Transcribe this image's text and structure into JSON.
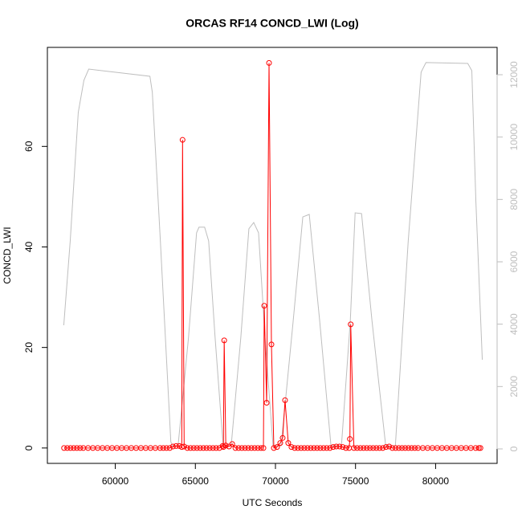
{
  "chart_data": {
    "type": "line",
    "title": "ORCAS RF14 CONCD_LWI (Log)",
    "x_label": "UTC Seconds",
    "y_label": "CONCD_LWI",
    "xlim": [
      55760,
      83840
    ],
    "xticks": [
      60000,
      65000,
      70000,
      75000,
      80000
    ],
    "ylim": [
      -3.06,
      79.7
    ],
    "yticks": [
      0,
      20,
      40,
      60
    ],
    "y2lim": [
      -464,
      12876
    ],
    "y2ticks": [
      0,
      2000,
      4000,
      6000,
      8000,
      10000,
      12000
    ],
    "series": [
      {
        "name": "CONCD_LWI",
        "color": "#ff0000",
        "markers": true,
        "x": [
          56800,
          57000,
          57200,
          57400,
          57600,
          57800,
          58000,
          58300,
          58600,
          58900,
          59200,
          59500,
          59800,
          60100,
          60400,
          60700,
          61000,
          61300,
          61600,
          61900,
          62200,
          62500,
          62800,
          63000,
          63200,
          63400,
          63600,
          63800,
          64000,
          64150,
          64200,
          64300,
          64500,
          64700,
          64900,
          65100,
          65300,
          65500,
          65700,
          65900,
          66100,
          66300,
          66500,
          66700,
          66750,
          66800,
          66900,
          67100,
          67300,
          67500,
          67700,
          67900,
          68100,
          68300,
          68500,
          68700,
          68900,
          69100,
          69250,
          69300,
          69450,
          69600,
          69750,
          69900,
          70100,
          70300,
          70450,
          70600,
          70800,
          71000,
          71200,
          71400,
          71600,
          71800,
          72000,
          72200,
          72400,
          72600,
          72800,
          73000,
          73200,
          73400,
          73600,
          73800,
          74000,
          74200,
          74400,
          74600,
          74650,
          74700,
          74900,
          75100,
          75300,
          75500,
          75700,
          75900,
          76100,
          76300,
          76500,
          76700,
          76900,
          77100,
          77300,
          77500,
          77700,
          77900,
          78100,
          78300,
          78500,
          78700,
          78900,
          79200,
          79500,
          79800,
          80100,
          80400,
          80700,
          81000,
          81300,
          81600,
          81900,
          82200,
          82500,
          82700,
          82800
        ],
        "values": [
          0,
          0,
          0,
          0,
          0,
          0,
          0,
          0,
          0,
          0,
          0,
          0,
          0,
          0,
          0,
          0,
          0,
          0,
          0,
          0,
          0,
          0,
          0,
          0,
          0,
          0,
          0.3,
          0.4,
          0.4,
          0.2,
          61.3,
          0.3,
          0,
          0,
          0,
          0,
          0,
          0,
          0,
          0,
          0,
          0,
          0,
          0.4,
          0.2,
          21.4,
          0.5,
          0.3,
          0.8,
          0,
          0,
          0,
          0,
          0,
          0,
          0,
          0,
          0,
          0,
          28.3,
          9,
          76.6,
          20.6,
          0,
          0.2,
          1,
          2,
          9.5,
          1,
          0.2,
          0,
          0,
          0,
          0,
          0,
          0,
          0,
          0,
          0,
          0,
          0,
          0,
          0.2,
          0.3,
          0.3,
          0.2,
          0,
          0,
          1.8,
          24.6,
          0,
          0,
          0,
          0,
          0,
          0,
          0,
          0,
          0,
          0,
          0.2,
          0.3,
          0,
          0,
          0,
          0,
          0,
          0,
          0,
          0,
          0,
          0,
          0,
          0,
          0,
          0,
          0,
          0,
          0,
          0,
          0,
          0,
          0,
          0,
          0
        ]
      },
      {
        "color": "#bebebe",
        "axis": "y2",
        "markers": false,
        "x": [
          56784,
          57186,
          57688,
          58040,
          58342,
          62161,
          62312,
          62814,
          63467,
          63567,
          63920,
          64573,
          65075,
          65226,
          65578,
          65829,
          66231,
          66734,
          67236,
          67839,
          68342,
          68643,
          68945,
          69347,
          69849,
          70352,
          71106,
          71709,
          72111,
          72764,
          73467,
          74121,
          74673,
          74975,
          75377,
          76030,
          76884,
          77487,
          78291,
          79095,
          79397,
          82010,
          82261,
          82513,
          82915
        ],
        "values": [
          3966,
          6670,
          10790,
          11820,
          12180,
          11950,
          11435,
          6670,
          230,
          100,
          100,
          3580,
          6930,
          7110,
          7110,
          6670,
          3580,
          100,
          100,
          3580,
          7060,
          7260,
          6930,
          3580,
          100,
          100,
          4095,
          7440,
          7520,
          4095,
          100,
          100,
          4095,
          7570,
          7545,
          4095,
          100,
          100,
          6670,
          12080,
          12390,
          12360,
          12130,
          7960,
          2860
        ]
      }
    ]
  }
}
